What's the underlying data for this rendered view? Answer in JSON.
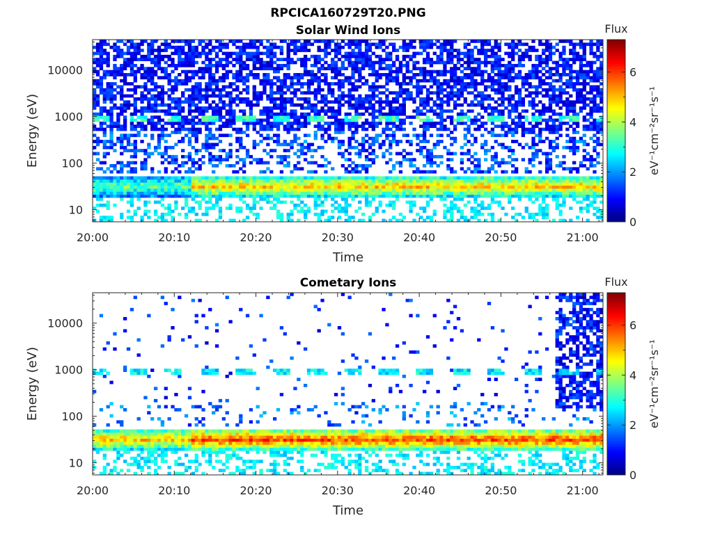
{
  "figure": {
    "title": "RPCICA160729T20.PNG"
  },
  "chart_data": [
    {
      "type": "heatmap",
      "title": "Solar Wind Ions",
      "xlabel": "Time",
      "ylabel": "Energy (eV)",
      "x_tick_labels": [
        "20:00",
        "20:10",
        "20:20",
        "20:30",
        "20:40",
        "20:50",
        "21:00"
      ],
      "x_ticks_minutes": [
        0,
        10,
        20,
        30,
        40,
        50,
        60
      ],
      "xlim_minutes": [
        0,
        62.5
      ],
      "y_scale": "log",
      "ylim": [
        5.5,
        45000
      ],
      "y_tick_labels": [
        "10",
        "100",
        "1000",
        "10000"
      ],
      "y_ticks": [
        10,
        100,
        1000,
        10000
      ],
      "colorbar": {
        "label": "Flux",
        "unit_label": "eV⁻¹cm⁻²sr⁻¹s⁻¹",
        "range": [
          0,
          7.3
        ],
        "tick_labels": [
          "0",
          "2",
          "4",
          "6"
        ],
        "ticks": [
          0,
          2,
          4,
          6
        ],
        "colormap": "jet"
      },
      "features": {
        "main_band": {
          "energy_ev": 32,
          "flux_level": 5
        },
        "upper_band": {
          "energy_ev": 900,
          "flux_level": 3
        },
        "background_high_energy": {
          "energy_range_ev": [
            500,
            45000
          ],
          "flux_level": 1
        }
      }
    },
    {
      "type": "heatmap",
      "title": "Cometary Ions",
      "xlabel": "Time",
      "ylabel": "Energy (eV)",
      "x_tick_labels": [
        "20:00",
        "20:10",
        "20:20",
        "20:30",
        "20:40",
        "20:50",
        "21:00"
      ],
      "x_ticks_minutes": [
        0,
        10,
        20,
        30,
        40,
        50,
        60
      ],
      "xlim_minutes": [
        0,
        62.5
      ],
      "y_scale": "log",
      "ylim": [
        5.5,
        45000
      ],
      "y_tick_labels": [
        "10",
        "100",
        "1000",
        "10000"
      ],
      "y_ticks": [
        10,
        100,
        1000,
        10000
      ],
      "colorbar": {
        "label": "Flux",
        "unit_label": "eV⁻¹cm⁻²sr⁻¹s⁻¹",
        "range": [
          0,
          7.3
        ],
        "tick_labels": [
          "0",
          "2",
          "4",
          "6"
        ],
        "ticks": [
          0,
          2,
          4,
          6
        ],
        "colormap": "jet"
      },
      "features": {
        "main_band": {
          "energy_ev": 32,
          "flux_level": 6
        },
        "upper_band": {
          "energy_ev": 900,
          "flux_level": 2.5
        },
        "dense_block": {
          "time_minutes": [
            56.5,
            62.5
          ],
          "energy_range_ev": [
            150,
            45000
          ],
          "flux_level": 1
        }
      }
    }
  ]
}
